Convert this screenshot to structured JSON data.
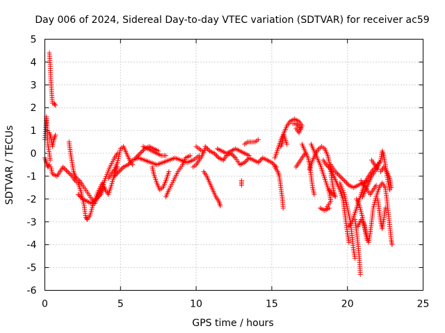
{
  "chart_data": {
    "type": "scatter",
    "title": "Day 006 of 2024, Sidereal Day-to-day VTEC variation (SDTVAR) for receiver ac59",
    "xlabel": "GPS time / hours",
    "ylabel": "SDTVAR / TECUs",
    "xlim": [
      0,
      25
    ],
    "ylim": [
      -6,
      5
    ],
    "xticks": [
      0,
      5,
      10,
      15,
      20,
      25
    ],
    "yticks": [
      -6,
      -5,
      -4,
      -3,
      -2,
      -1,
      0,
      1,
      2,
      3,
      4,
      5
    ],
    "grid": true,
    "marker": "+",
    "color": "#ff0000",
    "tracks": [
      [
        [
          0.0,
          0.6
        ],
        [
          0.1,
          1.6
        ],
        [
          0.15,
          1.2
        ],
        [
          0.2,
          0.4
        ],
        [
          0.3,
          0.0
        ],
        [
          0.35,
          -0.3
        ]
      ],
      [
        [
          0.0,
          -0.2
        ],
        [
          0.1,
          -0.4
        ],
        [
          0.2,
          -0.6
        ],
        [
          0.3,
          -0.5
        ]
      ],
      [
        [
          0.3,
          4.4
        ],
        [
          0.35,
          3.9
        ],
        [
          0.4,
          3.2
        ],
        [
          0.45,
          2.7
        ],
        [
          0.5,
          2.2
        ],
        [
          0.6,
          2.2
        ],
        [
          0.7,
          2.1
        ]
      ],
      [
        [
          0.3,
          0.9
        ],
        [
          0.4,
          0.7
        ],
        [
          0.5,
          0.3
        ],
        [
          0.6,
          0.6
        ],
        [
          0.7,
          0.8
        ]
      ],
      [
        [
          0.4,
          -0.6
        ],
        [
          0.5,
          -0.9
        ],
        [
          0.8,
          -1.0
        ],
        [
          1.0,
          -0.8
        ],
        [
          1.2,
          -0.6
        ],
        [
          1.5,
          -0.8
        ],
        [
          1.8,
          -1.0
        ],
        [
          2.0,
          -1.2
        ],
        [
          2.2,
          -1.3
        ],
        [
          2.4,
          -1.7
        ],
        [
          2.6,
          -2.3
        ],
        [
          2.7,
          -2.8
        ],
        [
          2.8,
          -2.9
        ],
        [
          3.0,
          -2.7
        ],
        [
          3.2,
          -2.2
        ],
        [
          3.5,
          -1.7
        ],
        [
          3.8,
          -1.3
        ],
        [
          4.0,
          -1.6
        ],
        [
          4.2,
          -1.8
        ],
        [
          4.4,
          -1.4
        ],
        [
          4.6,
          -0.9
        ],
        [
          4.8,
          -0.6
        ]
      ],
      [
        [
          1.6,
          0.5
        ],
        [
          1.7,
          0.0
        ],
        [
          1.8,
          -0.4
        ],
        [
          1.9,
          -0.8
        ],
        [
          2.0,
          -1.0
        ],
        [
          2.1,
          -1.1
        ],
        [
          2.3,
          -1.2
        ],
        [
          2.5,
          -1.4
        ],
        [
          2.8,
          -1.7
        ],
        [
          3.1,
          -2.0
        ],
        [
          3.3,
          -2.2
        ],
        [
          3.5,
          -1.9
        ],
        [
          3.7,
          -1.6
        ],
        [
          4.0,
          -1.1
        ],
        [
          4.3,
          -0.6
        ],
        [
          4.6,
          -0.2
        ],
        [
          4.8,
          0.0
        ]
      ],
      [
        [
          2.2,
          -1.8
        ],
        [
          2.5,
          -2.0
        ],
        [
          2.8,
          -2.1
        ],
        [
          3.1,
          -2.2
        ],
        [
          3.4,
          -2.0
        ],
        [
          3.7,
          -1.8
        ],
        [
          3.9,
          -1.5
        ]
      ],
      [
        [
          4.2,
          -1.1
        ],
        [
          4.4,
          -0.9
        ],
        [
          4.6,
          -0.7
        ],
        [
          4.8,
          -0.4
        ],
        [
          5.0,
          0.2
        ],
        [
          5.2,
          0.3
        ],
        [
          5.4,
          0.0
        ],
        [
          5.6,
          -0.3
        ],
        [
          5.8,
          -0.5
        ]
      ],
      [
        [
          4.6,
          -1.0
        ],
        [
          4.9,
          -0.8
        ],
        [
          5.2,
          -0.6
        ],
        [
          5.5,
          -0.5
        ],
        [
          5.8,
          -0.3
        ],
        [
          6.2,
          -0.2
        ],
        [
          6.6,
          -0.3
        ],
        [
          7.0,
          -0.4
        ],
        [
          7.4,
          -0.5
        ],
        [
          7.8,
          -0.4
        ],
        [
          8.2,
          -0.3
        ],
        [
          8.6,
          -0.2
        ],
        [
          9.0,
          -0.3
        ],
        [
          9.4,
          -0.4
        ],
        [
          9.8,
          -0.3
        ],
        [
          10.2,
          -0.1
        ]
      ],
      [
        [
          6.5,
          0.3
        ],
        [
          6.8,
          0.2
        ],
        [
          7.1,
          0.1
        ],
        [
          7.4,
          0.0
        ],
        [
          7.7,
          -0.1
        ],
        [
          8.0,
          -0.1
        ]
      ],
      [
        [
          7.1,
          -0.6
        ],
        [
          7.2,
          -0.9
        ],
        [
          7.4,
          -1.3
        ],
        [
          7.6,
          -1.6
        ],
        [
          7.8,
          -1.5
        ],
        [
          8.0,
          -1.2
        ],
        [
          8.2,
          -0.8
        ]
      ],
      [
        [
          8.0,
          -1.9
        ],
        [
          8.2,
          -1.6
        ],
        [
          8.5,
          -1.2
        ],
        [
          8.8,
          -0.8
        ],
        [
          9.1,
          -0.5
        ],
        [
          9.3,
          -0.2
        ],
        [
          9.6,
          -0.1
        ]
      ],
      [
        [
          6.0,
          -0.2
        ],
        [
          6.3,
          0.0
        ],
        [
          6.6,
          0.2
        ],
        [
          6.9,
          0.3
        ],
        [
          7.2,
          0.2
        ],
        [
          7.5,
          0.1
        ]
      ],
      [
        [
          9.8,
          -0.6
        ],
        [
          10.0,
          -0.5
        ],
        [
          10.2,
          -0.3
        ],
        [
          10.4,
          -0.1
        ],
        [
          10.6,
          0.2
        ]
      ],
      [
        [
          10.0,
          0.3
        ],
        [
          10.2,
          0.2
        ],
        [
          10.4,
          0.1
        ]
      ],
      [
        [
          10.5,
          -0.8
        ],
        [
          10.7,
          -1.0
        ],
        [
          10.9,
          -1.3
        ],
        [
          11.1,
          -1.6
        ],
        [
          11.3,
          -1.9
        ],
        [
          11.5,
          -2.1
        ],
        [
          11.6,
          -2.3
        ]
      ],
      [
        [
          10.6,
          0.3
        ],
        [
          10.9,
          0.1
        ],
        [
          11.2,
          0.0
        ],
        [
          11.5,
          -0.2
        ],
        [
          11.8,
          -0.3
        ],
        [
          12.0,
          -0.1
        ],
        [
          12.3,
          0.0
        ],
        [
          12.6,
          -0.2
        ],
        [
          12.9,
          -0.5
        ],
        [
          13.2,
          -0.4
        ],
        [
          13.5,
          -0.2
        ],
        [
          13.8,
          -0.3
        ],
        [
          14.1,
          -0.4
        ],
        [
          14.4,
          -0.2
        ],
        [
          14.7,
          -0.3
        ],
        [
          15.0,
          -0.4
        ],
        [
          15.3,
          -0.6
        ]
      ],
      [
        [
          11.4,
          0.2
        ],
        [
          11.7,
          0.1
        ],
        [
          12.0,
          0.0
        ],
        [
          12.3,
          0.1
        ],
        [
          12.6,
          0.2
        ],
        [
          12.9,
          0.1
        ],
        [
          13.2,
          0.0
        ],
        [
          13.5,
          -0.1
        ]
      ],
      [
        [
          13.0,
          -1.2
        ],
        [
          13.0,
          -1.4
        ]
      ],
      [
        [
          13.2,
          0.4
        ],
        [
          13.4,
          0.5
        ],
        [
          13.6,
          0.5
        ],
        [
          13.9,
          0.5
        ],
        [
          14.1,
          0.6
        ]
      ],
      [
        [
          15.2,
          -0.6
        ],
        [
          15.4,
          -0.8
        ],
        [
          15.5,
          -1.0
        ],
        [
          15.6,
          -1.5
        ],
        [
          15.7,
          -2.0
        ],
        [
          15.75,
          -2.4
        ]
      ],
      [
        [
          15.2,
          -0.2
        ],
        [
          15.4,
          0.2
        ],
        [
          15.6,
          0.6
        ],
        [
          15.8,
          0.9
        ],
        [
          16.0,
          1.2
        ],
        [
          16.2,
          1.4
        ],
        [
          16.5,
          1.5
        ],
        [
          16.8,
          1.4
        ],
        [
          17.0,
          1.2
        ],
        [
          16.8,
          0.9
        ],
        [
          16.6,
          1.1
        ]
      ],
      [
        [
          15.6,
          0.3
        ],
        [
          15.7,
          0.5
        ],
        [
          15.8,
          0.8
        ],
        [
          16.0,
          0.4
        ]
      ],
      [
        [
          16.4,
          1.3
        ],
        [
          16.6,
          1.3
        ],
        [
          16.9,
          1.1
        ]
      ],
      [
        [
          16.6,
          -0.6
        ],
        [
          16.8,
          -0.4
        ],
        [
          17.0,
          -0.2
        ],
        [
          17.2,
          0.0
        ]
      ],
      [
        [
          17.0,
          0.4
        ],
        [
          17.2,
          0.1
        ],
        [
          17.4,
          -0.2
        ],
        [
          17.5,
          -0.5
        ],
        [
          17.6,
          -1.0
        ],
        [
          17.7,
          -1.5
        ],
        [
          17.8,
          -1.8
        ]
      ],
      [
        [
          17.5,
          -0.7
        ],
        [
          17.7,
          -0.3
        ],
        [
          17.9,
          0.0
        ],
        [
          18.1,
          0.2
        ],
        [
          18.3,
          0.3
        ],
        [
          18.5,
          0.2
        ],
        [
          18.7,
          -0.1
        ],
        [
          18.8,
          -0.4
        ],
        [
          18.9,
          -0.8
        ],
        [
          19.0,
          -1.3
        ],
        [
          19.1,
          -1.7
        ],
        [
          19.2,
          -1.9
        ],
        [
          19.0,
          -1.8
        ],
        [
          18.8,
          -1.6
        ]
      ],
      [
        [
          17.6,
          0.4
        ],
        [
          17.8,
          0.1
        ],
        [
          18.0,
          -0.2
        ],
        [
          18.2,
          -0.5
        ],
        [
          18.4,
          -0.9
        ],
        [
          18.6,
          -1.3
        ],
        [
          18.8,
          -1.7
        ],
        [
          18.9,
          -2.1
        ],
        [
          18.6,
          -2.4
        ]
      ],
      [
        [
          18.2,
          -2.4
        ],
        [
          18.5,
          -2.5
        ],
        [
          18.8,
          -2.4
        ]
      ],
      [
        [
          18.4,
          -0.3
        ],
        [
          18.6,
          -0.5
        ],
        [
          18.9,
          -0.7
        ],
        [
          19.1,
          -1.0
        ],
        [
          19.3,
          -1.3
        ],
        [
          19.5,
          -1.6
        ],
        [
          19.7,
          -2.0
        ],
        [
          19.8,
          -2.5
        ],
        [
          19.9,
          -3.0
        ],
        [
          20.0,
          -3.5
        ],
        [
          20.1,
          -3.9
        ]
      ],
      [
        [
          18.9,
          -0.5
        ],
        [
          19.2,
          -0.8
        ],
        [
          19.5,
          -1.0
        ],
        [
          19.8,
          -1.2
        ],
        [
          20.1,
          -1.4
        ],
        [
          20.4,
          -1.5
        ],
        [
          20.7,
          -1.4
        ],
        [
          21.0,
          -1.3
        ],
        [
          21.3,
          -1.2
        ]
      ],
      [
        [
          19.5,
          -1.3
        ],
        [
          19.8,
          -1.8
        ],
        [
          20.0,
          -2.4
        ],
        [
          20.2,
          -3.0
        ],
        [
          20.3,
          -3.6
        ],
        [
          20.4,
          -4.2
        ],
        [
          20.5,
          -4.6
        ]
      ],
      [
        [
          20.1,
          -3.2
        ],
        [
          20.3,
          -3.0
        ],
        [
          20.5,
          -2.6
        ],
        [
          20.7,
          -2.2
        ],
        [
          20.9,
          -1.8
        ],
        [
          21.1,
          -1.4
        ],
        [
          21.3,
          -1.1
        ],
        [
          21.5,
          -0.9
        ],
        [
          21.7,
          -0.7
        ],
        [
          21.9,
          -0.6
        ],
        [
          22.1,
          -0.4
        ]
      ],
      [
        [
          20.5,
          -2.9
        ],
        [
          20.6,
          -3.4
        ],
        [
          20.7,
          -4.0
        ],
        [
          20.8,
          -4.7
        ],
        [
          20.85,
          -5.3
        ]
      ],
      [
        [
          20.7,
          -3.2
        ],
        [
          20.9,
          -2.9
        ],
        [
          21.1,
          -3.1
        ],
        [
          21.2,
          -3.5
        ],
        [
          21.3,
          -3.8
        ]
      ],
      [
        [
          20.6,
          -2.0
        ],
        [
          20.8,
          -2.3
        ],
        [
          21.0,
          -2.8
        ],
        [
          21.2,
          -3.4
        ],
        [
          21.4,
          -3.9
        ],
        [
          21.5,
          -3.5
        ],
        [
          21.6,
          -3.0
        ],
        [
          21.7,
          -2.4
        ],
        [
          21.9,
          -1.9
        ],
        [
          22.1,
          -1.5
        ],
        [
          22.3,
          -1.3
        ],
        [
          22.5,
          -1.5
        ],
        [
          22.6,
          -2.0
        ],
        [
          22.7,
          -2.6
        ],
        [
          22.8,
          -3.2
        ],
        [
          22.9,
          -3.8
        ],
        [
          22.95,
          -4.0
        ]
      ],
      [
        [
          21.0,
          -1.9
        ],
        [
          21.2,
          -1.6
        ],
        [
          21.4,
          -1.3
        ],
        [
          21.6,
          -1.0
        ],
        [
          21.8,
          -0.8
        ],
        [
          22.0,
          -0.6
        ],
        [
          22.2,
          -0.3
        ],
        [
          22.3,
          0.1
        ],
        [
          22.4,
          -0.1
        ],
        [
          22.5,
          -0.5
        ],
        [
          22.6,
          -0.9
        ],
        [
          22.7,
          -1.3
        ],
        [
          22.8,
          -1.6
        ]
      ],
      [
        [
          20.9,
          -1.2
        ],
        [
          21.2,
          -1.5
        ],
        [
          21.5,
          -1.8
        ],
        [
          21.7,
          -1.6
        ],
        [
          21.9,
          -1.4
        ]
      ],
      [
        [
          22.0,
          -2.0
        ],
        [
          22.1,
          -2.5
        ],
        [
          22.2,
          -3.0
        ],
        [
          22.3,
          -3.3
        ],
        [
          22.4,
          -2.9
        ],
        [
          22.5,
          -2.4
        ]
      ],
      [
        [
          22.2,
          -0.8
        ],
        [
          22.4,
          -0.6
        ],
        [
          22.6,
          -0.8
        ],
        [
          22.8,
          -1.1
        ],
        [
          22.9,
          -1.5
        ]
      ],
      [
        [
          21.6,
          -0.3
        ],
        [
          21.8,
          -0.5
        ],
        [
          22.0,
          -0.7
        ]
      ]
    ]
  }
}
